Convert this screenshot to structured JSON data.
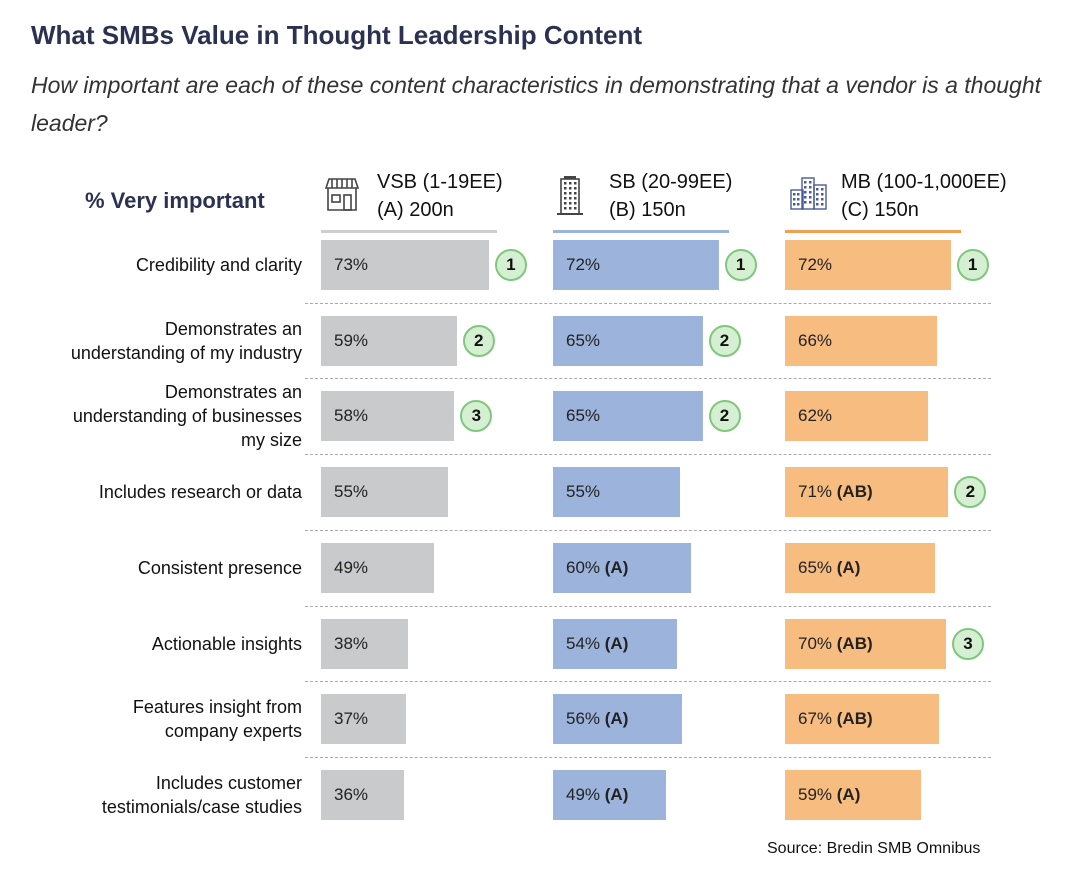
{
  "title": "What SMBs Value in Thought Leadership Content",
  "subtitle": "How important are each of these content characteristics in demonstrating that a vendor is a thought leader?",
  "metric_label": "% Very important",
  "source": "Source: Bredin SMB Omnibus",
  "chart_data": {
    "type": "bar",
    "orientation": "horizontal",
    "categories": [
      "Credibility and clarity",
      "Demonstrates an understanding of my industry",
      "Demonstrates an understanding of businesses my size",
      "Includes research or data",
      "Consistent presence",
      "Actionable insights",
      "Features insight from company experts",
      "Includes customer testimonials/case studies"
    ],
    "series": [
      {
        "name": "VSB (1-19EE)",
        "sub": "(A) 200n",
        "icon": "storefront-icon",
        "color": "#c8cacb",
        "values": [
          73,
          59,
          58,
          55,
          49,
          38,
          37,
          36
        ],
        "sig": [
          "",
          "",
          "",
          "",
          "",
          "",
          "",
          ""
        ],
        "rank": [
          1,
          2,
          3,
          null,
          null,
          null,
          null,
          null
        ]
      },
      {
        "name": "SB (20-99EE)",
        "sub": "(B) 150n",
        "icon": "office-building-icon",
        "color": "#9cb3db",
        "values": [
          72,
          65,
          65,
          55,
          60,
          54,
          56,
          49
        ],
        "sig": [
          "",
          "",
          "",
          "",
          "(A)",
          "(A)",
          "(A)",
          "(A)"
        ],
        "rank": [
          1,
          2,
          2,
          null,
          null,
          null,
          null,
          null
        ]
      },
      {
        "name": "MB (100-1,000EE)",
        "sub": "(C) 150n",
        "icon": "city-buildings-icon",
        "color": "#f7bd80",
        "values": [
          72,
          66,
          62,
          71,
          65,
          70,
          67,
          59
        ],
        "sig": [
          "",
          "",
          "",
          "(AB)",
          "(A)",
          "(AB)",
          "(AB)",
          "(A)"
        ],
        "rank": [
          1,
          null,
          null,
          2,
          null,
          3,
          null,
          null
        ]
      }
    ],
    "line_colors": [
      "#cfcfcf",
      "#9cb3db",
      "#f0a050"
    ],
    "badge_color": "#d5efd3",
    "unit": "%"
  }
}
